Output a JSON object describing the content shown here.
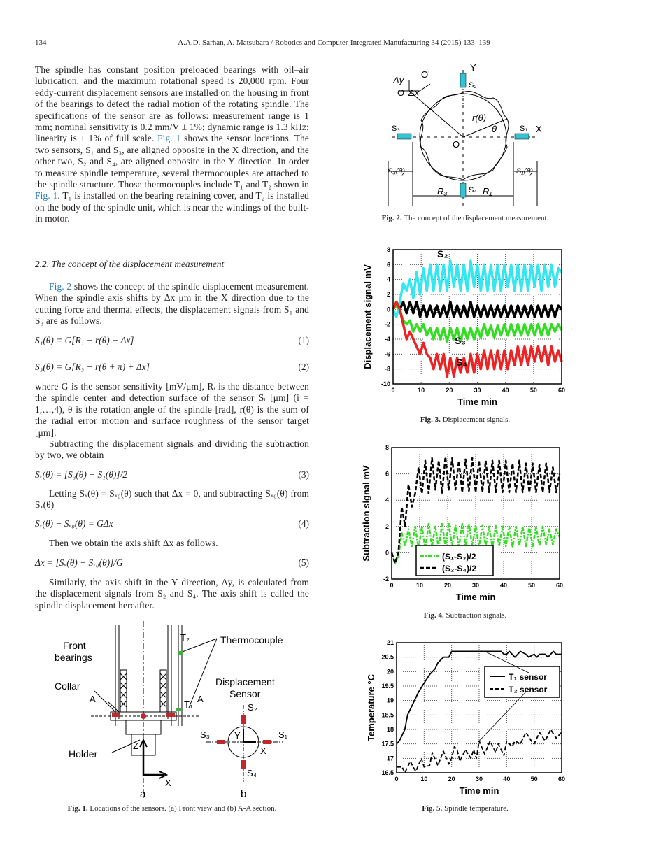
{
  "header": {
    "page_number": "134",
    "running_title": "A.A.D. Sarhan, A. Matsubara / Robotics and Computer-Integrated Manufacturing 34 (2015) 133–139"
  },
  "body": {
    "p1_a": "The spindle has constant position preloaded bearings with oil–air lubrication, and the maximum rotational speed is 20,000 rpm. Four eddy-current displacement sensors are installed on the housing in front of the bearings to detect the radial motion of the rotating spindle. The specifications of the sensor are as follows: measurement range is 1 mm; nominal sensitivity is 0.2 mm/V ± 1%; dynamic range is 1.3 kHz; linearity is ± 1% of full scale. ",
    "p1_link1": "Fig. 1",
    "p1_b": " shows the sensor locations. The two sensors, S₁ and S₃, are aligned opposite in the X direction, and the other two, S₂ and S₄, are aligned opposite in the Y direction. In order to measure spindle temperature, several thermocouples are attached to the spindle structure. Those thermocouples include T₁ and T₂ shown in ",
    "p1_link2": "Fig. 1",
    "p1_c": ". T₁ is installed on the bearing retaining cover, and T₂ is installed on the body of the spindle unit, which is near the windings of the built-in motor.",
    "section_heading": "2.2.  The concept of the displacement measurement",
    "p2_link": "Fig. 2",
    "p2": " shows the concept of the spindle displacement measurement. When the spindle axis shifts by Δx μm in the X direction due to the cutting force and thermal effects, the displacement signals from S₁ and S₃ are as follows.",
    "eq1": "S₁(θ) = G[R₁ − r(θ) − Δx]",
    "eq1_num": "(1)",
    "eq2": "S₃(θ) = G[R₃ − r(θ + π) + Δx]",
    "eq2_num": "(2)",
    "p3": "where G is the sensor sensitivity [mV/μm], Rᵢ is the distance between the spindle center and detection surface of the sensor Sᵢ [μm] (i = 1,…,4), θ is the rotation angle of the spindle [rad], r(θ) is the sum of the radial error motion and surface roughness of the sensor target [μm].",
    "p4": "Subtracting the displacement signals and dividing the subtraction by two, we obtain",
    "eq3": "Sₓ(θ) = [S₃(θ) − S₁(θ)]/2",
    "eq3_num": "(3)",
    "p5": "Letting Sₓ(θ) = Sₓ₀(θ) such that Δx = 0, and subtracting Sₓ₀(θ) from Sₓ(θ)",
    "eq4": "Sₓ(θ) − Sₓ₀(θ) = GΔx",
    "eq4_num": "(4)",
    "p6": "Then we obtain the axis shift Δx as follows.",
    "eq5": "Δx = [Sₓ(θ) − Sₓ₀(θ)]/G",
    "eq5_num": "(5)",
    "p7": "Similarly, the axis shift in the Y direction, Δy, is calculated from the displacement signals from S₂ and S₄. The axis shift is called the spindle displacement hereafter."
  },
  "fig1": {
    "labels": {
      "front_bearings_1": "Front",
      "front_bearings_2": "bearings",
      "collar": "Collar",
      "holder": "Holder",
      "thermocouple": "Thermocouple",
      "t2": "T₂",
      "t1": "T₁",
      "a_left": "A",
      "a_right": "A",
      "z": "Z",
      "x": "X",
      "sub_a": "a",
      "sub_b": "b",
      "disp1": "Displacement",
      "disp2": "Sensor",
      "s1": "S₁",
      "s2": "S₂",
      "s3": "S₃",
      "s4": "S₄",
      "bx": "X",
      "by": "Y"
    },
    "caption_label": "Fig. 1.",
    "caption": " Locations of the sensors. (a) Front view and (b) A-A section.",
    "colors": {
      "sensor": "#c0282d",
      "thermocouple": "#3cb43c"
    }
  },
  "fig2": {
    "labels": {
      "dy": "Δy",
      "o_prime": "O'",
      "o": "O",
      "dx": "Δx",
      "y": "Y",
      "s2": "S₂",
      "r_theta": "r(θ)",
      "theta": "θ",
      "s1": "S₁",
      "x": "X",
      "s3": "S₃",
      "o_center": "O",
      "s3_theta": "S₃(θ)",
      "s1_theta": "S₁(θ)",
      "s4": "S₄",
      "r3": "R₃",
      "r1": "R₁"
    },
    "caption_label": "Fig. 2.",
    "caption": " The concept of the displacement measurement.",
    "colors": {
      "sensor": "#33c4d4"
    }
  },
  "chart_data": [
    {
      "type": "line",
      "xlabel": "Time min",
      "ylabel": "Displacement signal mV",
      "xlim": [
        0,
        60
      ],
      "ylim": [
        -10,
        8
      ],
      "xticks": [
        0,
        10,
        20,
        30,
        40,
        50,
        60
      ],
      "yticks": [
        -10,
        -8,
        -6,
        -4,
        -2,
        0,
        2,
        4,
        6,
        8
      ],
      "grid": true,
      "caption_label": "Fig. 3.",
      "caption": " Displacement signals.",
      "x": [
        0,
        1.2,
        2.4,
        3.6,
        4.8,
        6,
        7.2,
        8.4,
        9.6,
        10.8,
        12,
        13.2,
        14.4,
        15.6,
        16.8,
        18,
        19.2,
        20.4,
        21.6,
        22.8,
        24,
        25.2,
        26.4,
        27.6,
        28.8,
        30,
        31.2,
        32.4,
        33.6,
        34.8,
        36,
        37.2,
        38.4,
        39.6,
        40.8,
        42,
        43.2,
        44.4,
        45.6,
        46.8,
        48,
        49.2,
        50.4,
        51.6,
        52.8,
        54,
        55.2,
        56.4,
        57.6,
        58.8,
        60
      ],
      "series": [
        {
          "name": "S₂",
          "color": "#33e6f0",
          "values": [
            0,
            -1,
            1,
            3.5,
            2.5,
            4,
            1.5,
            5,
            2,
            5.5,
            2.5,
            6,
            2.5,
            6,
            2.5,
            6,
            2.5,
            6.5,
            3,
            6,
            2.5,
            6,
            2.5,
            6.5,
            3,
            6,
            2.5,
            6,
            2.5,
            6,
            2.5,
            6,
            2.5,
            6,
            3,
            6,
            2.5,
            6,
            2.5,
            6,
            2.5,
            6,
            3,
            6,
            2.5,
            6,
            3,
            6,
            3,
            5.5,
            5
          ]
        },
        {
          "name": "S₁",
          "color": "#000000",
          "values": [
            0,
            1,
            0,
            1,
            -0.5,
            1,
            -0.5,
            1,
            -1,
            0.5,
            -1,
            0.5,
            -1,
            0.5,
            -1,
            0.5,
            -1,
            1,
            -1,
            0.5,
            -1,
            0.5,
            -1,
            1,
            -1,
            0.5,
            -1,
            0.5,
            -1,
            0.5,
            -1,
            0.5,
            -1,
            0.5,
            -1,
            0.5,
            -1,
            0.5,
            -1,
            0.5,
            -1,
            0.5,
            -1,
            0.5,
            -1,
            0.5,
            -1,
            0.5,
            -1,
            0.5,
            0
          ]
        },
        {
          "name": "S₃",
          "color": "#33dd22",
          "values": [
            0,
            0.5,
            0,
            -1.5,
            -2,
            -1.5,
            -3,
            -2,
            -3,
            -2,
            -3.5,
            -2.5,
            -4,
            -2.5,
            -4,
            -2.5,
            -4.3,
            -2.5,
            -4,
            -2.5,
            -4.3,
            -2.5,
            -4,
            -2.5,
            -4,
            -2.5,
            -3.8,
            -2,
            -3.5,
            -2.2,
            -3.8,
            -2.2,
            -3.5,
            -2,
            -3.5,
            -2,
            -3.5,
            -2,
            -3.5,
            -2,
            -3.5,
            -2,
            -3.5,
            -2,
            -3.5,
            -2,
            -3.5,
            -2,
            -3,
            -2,
            -2.8
          ]
        },
        {
          "name": "S₄",
          "color": "#ee2222",
          "values": [
            0,
            1,
            0,
            -2,
            -4,
            -3,
            -4,
            -5,
            -6,
            -4.5,
            -6,
            -6.5,
            -8,
            -6,
            -8,
            -6,
            -9,
            -6.5,
            -9,
            -6.5,
            -8.5,
            -6.5,
            -8.5,
            -6,
            -8.5,
            -6,
            -8,
            -5.5,
            -8,
            -5.5,
            -8,
            -5.5,
            -8,
            -5.5,
            -8,
            -5.5,
            -7.5,
            -5,
            -7.5,
            -5,
            -7.5,
            -5,
            -7,
            -5,
            -7,
            -5,
            -7.5,
            -5,
            -7,
            -5.5,
            -7
          ]
        }
      ]
    },
    {
      "type": "line",
      "xlabel": "Time min",
      "ylabel": "Subtraction signal mV",
      "xlim": [
        0,
        60
      ],
      "ylim": [
        -2,
        8
      ],
      "xticks": [
        0,
        10,
        20,
        30,
        40,
        50,
        60
      ],
      "yticks": [
        -2,
        0,
        2,
        4,
        6,
        8
      ],
      "grid": true,
      "legend": "bottom-left",
      "caption_label": "Fig. 4.",
      "caption": " Subtraction signals.",
      "x": [
        0,
        1.2,
        2.4,
        3.6,
        4.8,
        6,
        7.2,
        8.4,
        9.6,
        10.8,
        12,
        13.2,
        14.4,
        15.6,
        16.8,
        18,
        19.2,
        20.4,
        21.6,
        22.8,
        24,
        25.2,
        26.4,
        27.6,
        28.8,
        30,
        31.2,
        32.4,
        33.6,
        34.8,
        36,
        37.2,
        38.4,
        39.6,
        40.8,
        42,
        43.2,
        44.4,
        45.6,
        46.8,
        48,
        49.2,
        50.4,
        51.6,
        52.8,
        54,
        55.2,
        56.4,
        57.6,
        58.8,
        60
      ],
      "series": [
        {
          "name": "(S₁-S₃)/2",
          "color": "#33dd22",
          "dash": "dashdot",
          "values": [
            0,
            -0.8,
            -0.3,
            1.5,
            0.5,
            1.8,
            0.5,
            2,
            0.3,
            2,
            0.3,
            2.2,
            0.5,
            2,
            0.3,
            2.2,
            0.5,
            2.2,
            0.5,
            2.1,
            0.4,
            2.2,
            0.5,
            2.2,
            0.5,
            2.1,
            0.4,
            2.1,
            0.5,
            2,
            0.4,
            2.1,
            0.5,
            2,
            0.5,
            2,
            0.4,
            2,
            0.5,
            2,
            0.5,
            2,
            0.5,
            2,
            0.5,
            2,
            0.6,
            1.8,
            0.6,
            1.8,
            1.2
          ]
        },
        {
          "name": "(S₂-S₄)/2",
          "color": "#000000",
          "dash": "dash",
          "values": [
            0,
            -0.8,
            0,
            3.5,
            2,
            5.2,
            3.5,
            4.5,
            6.5,
            4.5,
            7,
            4.5,
            7.2,
            4.8,
            7,
            4.5,
            7.3,
            4.8,
            7.2,
            4.8,
            7,
            4.6,
            7.1,
            4.7,
            7.2,
            4.6,
            7,
            4.6,
            7,
            4.6,
            7,
            4.6,
            7,
            4.6,
            7,
            4.6,
            6.8,
            4.6,
            7,
            4.6,
            6.8,
            4.6,
            6.8,
            4.6,
            6.7,
            4.6,
            6.8,
            4.6,
            6.5,
            4.6,
            6
          ]
        }
      ]
    },
    {
      "type": "line",
      "xlabel": "Time min",
      "ylabel": "Temperature °C",
      "xlim": [
        0,
        60
      ],
      "ylim": [
        16.5,
        21
      ],
      "xticks": [
        0,
        10,
        20,
        30,
        40,
        50,
        60
      ],
      "yticks": [
        16.5,
        17,
        17.5,
        18,
        18.5,
        19,
        19.5,
        20,
        20.5,
        21
      ],
      "grid": true,
      "legend": "upper-right",
      "caption_label": "Fig. 5.",
      "caption": " Spindle temperature.",
      "series": [
        {
          "name": "T₁ sensor",
          "color": "#000000",
          "dash": "solid",
          "x": [
            0,
            1,
            2,
            3,
            4,
            6,
            8,
            10,
            12,
            14,
            15,
            17,
            19,
            20,
            38,
            39,
            40,
            41,
            43,
            45,
            47,
            48,
            50,
            51,
            52,
            54,
            55,
            57,
            58,
            60
          ],
          "values": [
            17.5,
            17.6,
            17.8,
            18,
            18.5,
            18.9,
            19.3,
            19.6,
            19.9,
            20.1,
            20.3,
            20.5,
            20.5,
            20.7,
            20.7,
            20.6,
            20.6,
            20.7,
            20.5,
            20.7,
            20.6,
            20.5,
            20.6,
            20.5,
            20.6,
            20.6,
            20.5,
            20.7,
            20.6,
            20.6
          ]
        },
        {
          "name": "T₂ sensor",
          "color": "#000000",
          "dash": "dash",
          "x": [
            0,
            2,
            3,
            5,
            6,
            7,
            9,
            10,
            12,
            13,
            15,
            17,
            19,
            20,
            21,
            22,
            23,
            25,
            27,
            28,
            29,
            30,
            32,
            34,
            36,
            37,
            39,
            40,
            42,
            43,
            45,
            47,
            49,
            50,
            52,
            54,
            56,
            58,
            60
          ],
          "values": [
            16.7,
            16.7,
            16.5,
            16.9,
            16.7,
            16.55,
            17,
            16.7,
            16.75,
            17.2,
            16.75,
            17.25,
            16.8,
            17,
            17.4,
            17.3,
            16.9,
            17.3,
            17,
            17.3,
            17,
            17.6,
            17.15,
            17.6,
            17.2,
            17.5,
            17.1,
            17.6,
            17.4,
            17.6,
            17.5,
            17.9,
            17.6,
            17.5,
            17.9,
            17.6,
            18,
            17.7,
            17.9
          ]
        }
      ]
    }
  ]
}
